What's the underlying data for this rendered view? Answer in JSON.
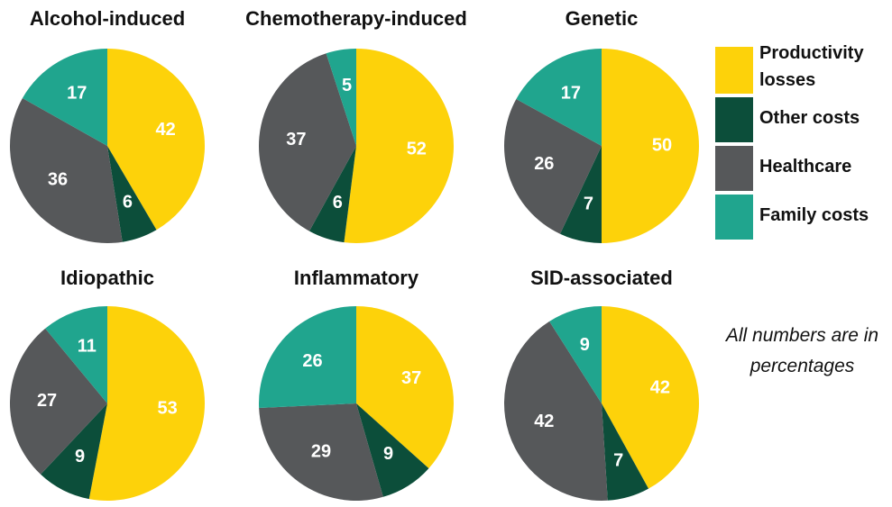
{
  "chart_data": [
    {
      "type": "pie",
      "title": "Alcohol-induced",
      "values": [
        42,
        6,
        36,
        17
      ]
    },
    {
      "type": "pie",
      "title": "Chemotherapy-induced",
      "values": [
        52,
        6,
        37,
        5
      ]
    },
    {
      "type": "pie",
      "title": "Genetic",
      "values": [
        50,
        7,
        26,
        17
      ]
    },
    {
      "type": "pie",
      "title": "Idiopathic",
      "values": [
        53,
        9,
        27,
        11
      ]
    },
    {
      "type": "pie",
      "title": "Inflammatory",
      "values": [
        37,
        9,
        29,
        26
      ]
    },
    {
      "type": "pie",
      "title": "SID-associated",
      "values": [
        42,
        7,
        42,
        9
      ]
    }
  ],
  "legend": {
    "categories": [
      "Productivity losses",
      "Other costs",
      "Healthcare",
      "Family costs"
    ],
    "colors": [
      "#fdd20a",
      "#0c4e3a",
      "#56585a",
      "#20a58e"
    ]
  },
  "note": "All numbers are in percentages"
}
